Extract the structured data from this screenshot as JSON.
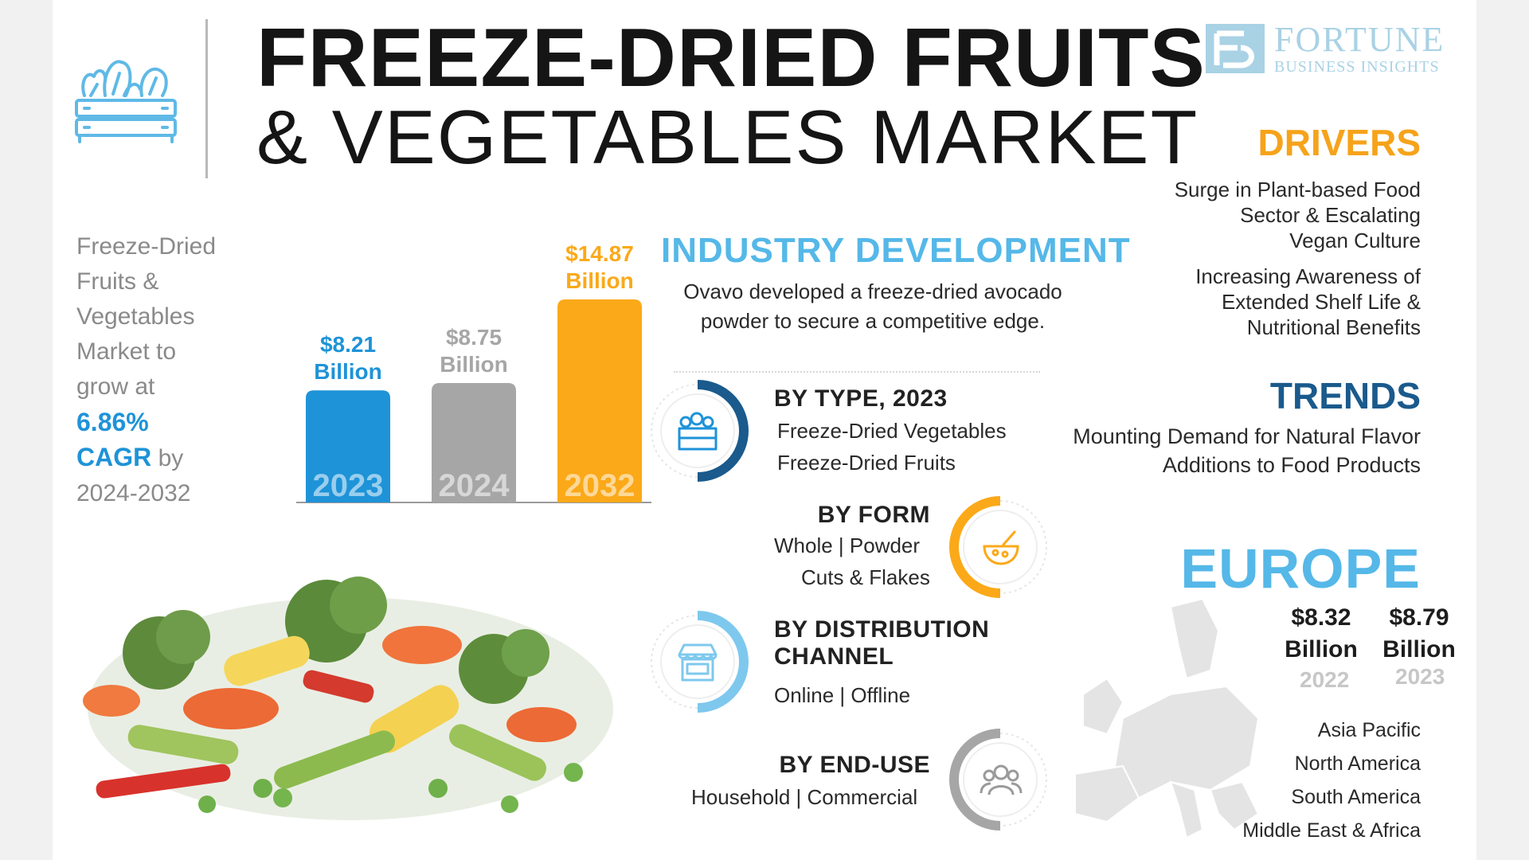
{
  "header": {
    "title_line1": "FREEZE-DRIED FRUITS",
    "title_line2": "& VEGETABLES MARKET",
    "logo_name": "FORTUNE",
    "logo_sub": "BUSINESS INSIGHTS"
  },
  "market": {
    "line1": "Freeze-Dried",
    "line2": "Fruits &",
    "line3": "Vegetables",
    "line4": "Market to",
    "line5": "grow at",
    "cagr_value": "6.86%",
    "cagr_word": "CAGR",
    "by_word": "by",
    "period": "2024-2032"
  },
  "chart_data": {
    "type": "bar",
    "categories": [
      "2023",
      "2024",
      "2032"
    ],
    "values": [
      8.21,
      8.75,
      14.87
    ],
    "value_labels": [
      [
        "$8.21",
        "Billion"
      ],
      [
        "$8.75",
        "Billion"
      ],
      [
        "$14.87",
        "Billion"
      ]
    ],
    "unit": "Billion",
    "colors": [
      "#1e93d8",
      "#a6a6a6",
      "#fba919"
    ],
    "ylim": [
      0,
      14.87
    ]
  },
  "industry": {
    "heading": "INDUSTRY DEVELOPMENT",
    "line1": "Ovavo developed a freeze-dried avocado",
    "line2": "powder to secure a competitive edge."
  },
  "segments": {
    "type": {
      "heading": "BY TYPE, 2023",
      "item1": "Freeze-Dried Vegetables",
      "item2": "Freeze-Dried Fruits",
      "icon": "crate-icon"
    },
    "form": {
      "heading": "BY FORM",
      "item1": "Whole  |  Powder",
      "item2": "Cuts & Flakes",
      "icon": "bowl-icon"
    },
    "distribution": {
      "heading_line1": "BY DISTRIBUTION",
      "heading_line2": "CHANNEL",
      "item1": "Online  |  Offline",
      "icon": "store-icon"
    },
    "enduse": {
      "heading": "BY END-USE",
      "item1": "Household  |  Commercial",
      "icon": "users-icon"
    }
  },
  "drivers": {
    "heading": "DRIVERS",
    "color": "#f6a31b",
    "d1_line1": "Surge in Plant-based Food",
    "d1_line2": "Sector & Escalating",
    "d1_line3": "Vegan Culture",
    "d2_line1": "Increasing Awareness of",
    "d2_line2": "Extended Shelf Life &",
    "d2_line3": "Nutritional Benefits"
  },
  "trends": {
    "heading": "TRENDS",
    "color": "#1a5a8c",
    "line1": "Mounting Demand for Natural Flavor",
    "line2": "Additions to Food Products"
  },
  "europe": {
    "heading": "EUROPE",
    "v1_amount": "$8.32",
    "v1_unit": "Billion",
    "v1_year": "2022",
    "v2_amount": "$8.79",
    "v2_unit": "Billion",
    "v2_year": "2023",
    "regions": [
      "Asia Pacific",
      "North America",
      "South America",
      "Middle East & Africa"
    ]
  }
}
